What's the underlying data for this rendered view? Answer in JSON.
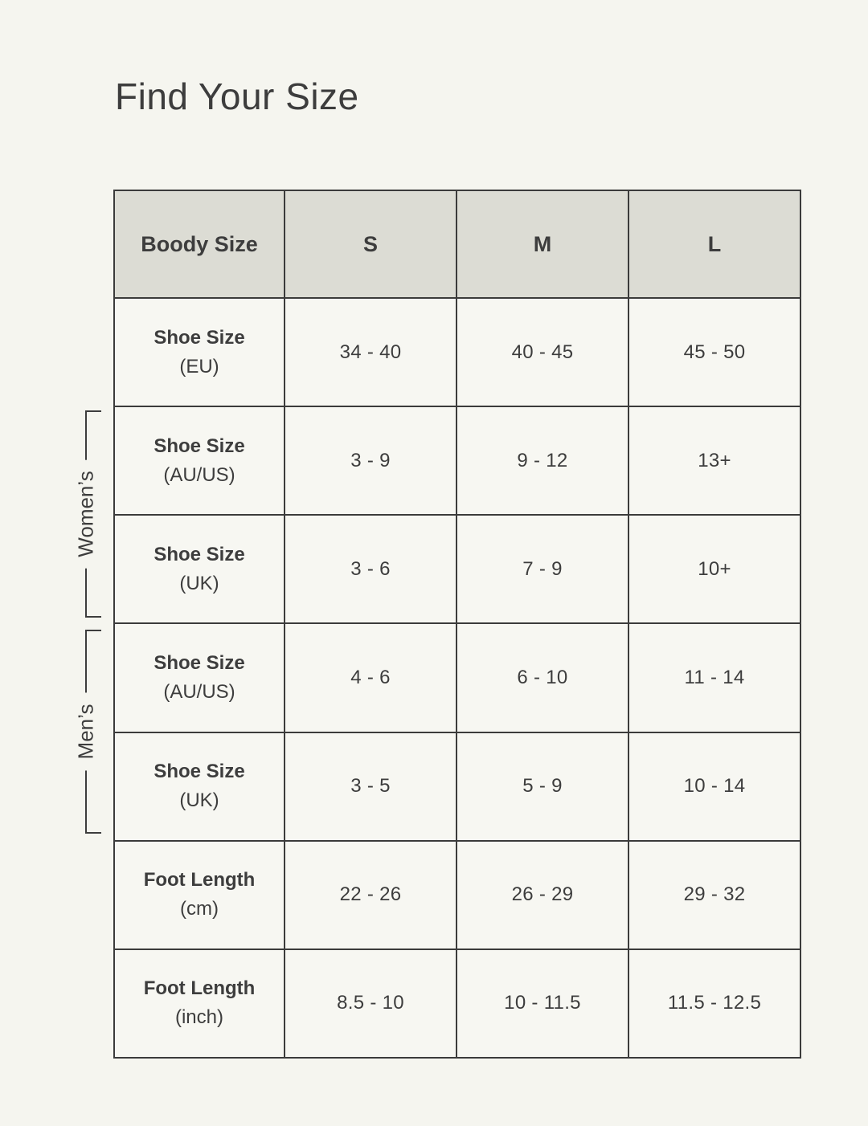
{
  "title": "Find Your Size",
  "colors": {
    "page_bg": "#f5f5ef",
    "cell_bg": "#f7f7f2",
    "header_bg": "#dcdcd4",
    "border": "#3b3b3b",
    "text": "#3d3d3d"
  },
  "table": {
    "header": [
      "Boody Size",
      "S",
      "M",
      "L"
    ],
    "rows": [
      {
        "label": "Shoe Size",
        "unit": "(EU)",
        "values": [
          "34 - 40",
          "40 - 45",
          "45 - 50"
        ]
      },
      {
        "label": "Shoe Size",
        "unit": "(AU/US)",
        "values": [
          "3 - 9",
          "9 - 12",
          "13+"
        ]
      },
      {
        "label": "Shoe Size",
        "unit": "(UK)",
        "values": [
          "3 - 6",
          "7 - 9",
          "10+"
        ]
      },
      {
        "label": "Shoe Size",
        "unit": "(AU/US)",
        "values": [
          "4 - 6",
          "6 - 10",
          "11 - 14"
        ]
      },
      {
        "label": "Shoe Size",
        "unit": "(UK)",
        "values": [
          "3 - 5",
          "5 - 9",
          "10 - 14"
        ]
      },
      {
        "label": "Foot Length",
        "unit": "(cm)",
        "values": [
          "22 - 26",
          "26 - 29",
          "29 - 32"
        ]
      },
      {
        "label": "Foot Length",
        "unit": "(inch)",
        "values": [
          "8.5 - 10",
          "10 - 11.5",
          "11.5 - 12.5"
        ]
      }
    ]
  },
  "groups": {
    "womens": {
      "label": "Women’s"
    },
    "mens": {
      "label": "Men’s"
    }
  },
  "chart_data": {
    "type": "table",
    "title": "Find Your Size",
    "columns": [
      "Boody Size",
      "S",
      "M",
      "L"
    ],
    "rows": [
      [
        "Shoe Size (EU)",
        "34 - 40",
        "40 - 45",
        "45 - 50"
      ],
      [
        "Shoe Size (AU/US)",
        "3 - 9",
        "9 - 12",
        "13+"
      ],
      [
        "Shoe Size (UK)",
        "3 - 6",
        "7 - 9",
        "10+"
      ],
      [
        "Shoe Size (AU/US)",
        "4 - 6",
        "6 - 10",
        "11 - 14"
      ],
      [
        "Shoe Size (UK)",
        "3 - 5",
        "5 - 9",
        "10 - 14"
      ],
      [
        "Foot Length (cm)",
        "22 - 26",
        "26 - 29",
        "29 - 32"
      ],
      [
        "Foot Length (inch)",
        "8.5 - 10",
        "10 - 11.5",
        "11.5 - 12.5"
      ]
    ],
    "row_groups": [
      {
        "label": "Women’s",
        "row_indexes": [
          1,
          2
        ]
      },
      {
        "label": "Men’s",
        "row_indexes": [
          3,
          4
        ]
      }
    ]
  }
}
